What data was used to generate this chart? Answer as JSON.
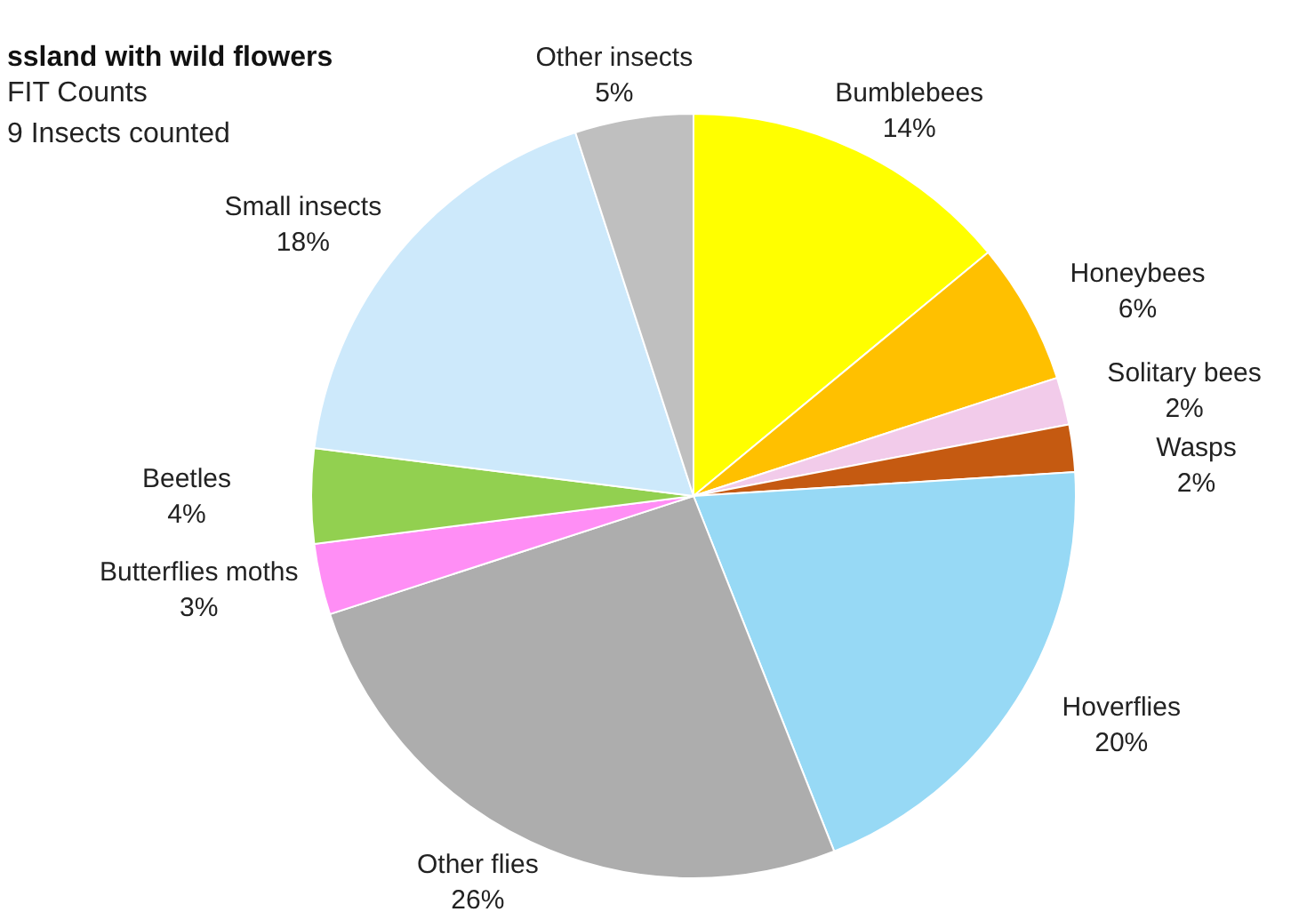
{
  "chart_data": {
    "type": "pie",
    "title": "ssland with wild flowers",
    "subtitle": "FIT Counts\n9 Insects counted",
    "categories": [
      "Bumblebees",
      "Honeybees",
      "Solitary bees",
      "Wasps",
      "Hoverflies",
      "Other flies",
      "Butterflies moths",
      "Beetles",
      "Small insects",
      "Other insects"
    ],
    "values": [
      14,
      6,
      2,
      2,
      20,
      26,
      3,
      4,
      18,
      5
    ],
    "colors": [
      "#ffff00",
      "#ffc000",
      "#f2cbea",
      "#c55a11",
      "#97d9f5",
      "#adadad",
      "#ff8ef5",
      "#92d050",
      "#cde9fb",
      "#bfbfbf"
    ],
    "value_labels": [
      "14%",
      "6%",
      "2%",
      "2%",
      "20%",
      "26%",
      "3%",
      "4%",
      "18%",
      "5%"
    ]
  }
}
